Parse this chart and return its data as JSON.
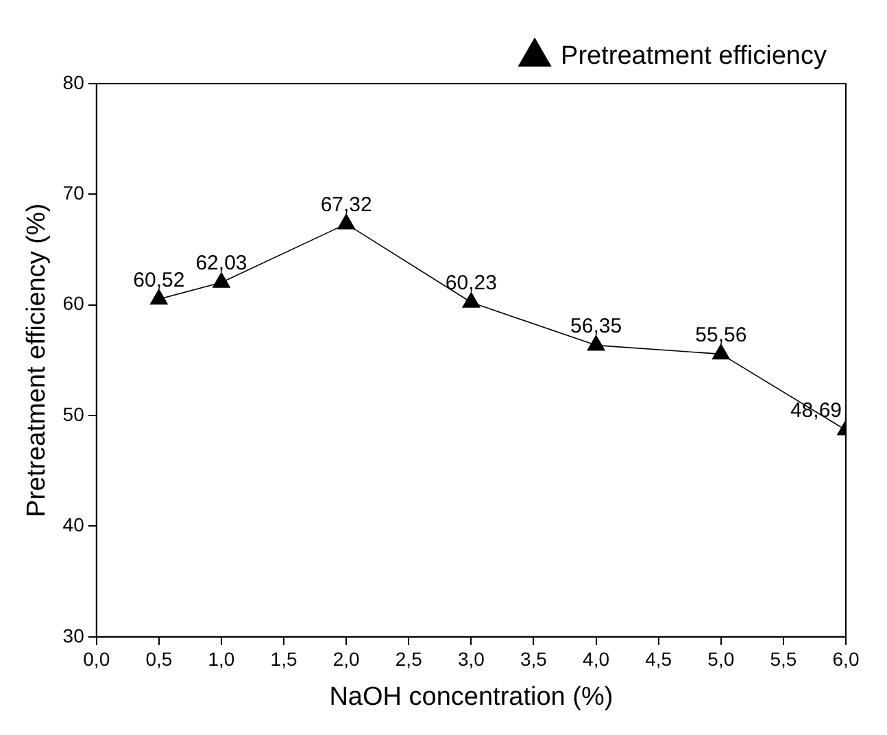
{
  "chart_data": {
    "type": "line",
    "xlabel": "NaOH concentration (%)",
    "ylabel": "Pretreatment efficiency (%)",
    "series": [
      {
        "name": "Pretreatment efficiency",
        "color": "#000000",
        "x": [
          0.5,
          1,
          2,
          3,
          4,
          5,
          6
        ],
        "values": [
          60.52,
          62.03,
          67.32,
          60.23,
          56.35,
          55.56,
          48.69
        ],
        "value_labels": [
          "60,52",
          "62,03",
          "67,32",
          "60,23",
          "56,35",
          "55,56",
          "48,69"
        ]
      }
    ],
    "xlim": [
      0,
      6
    ],
    "xticks": [
      {
        "value": 0,
        "label": "0,0"
      },
      {
        "value": 0.5,
        "label": "0,5"
      },
      {
        "value": 1,
        "label": "1,0"
      },
      {
        "value": 1.5,
        "label": "1,5"
      },
      {
        "value": 2,
        "label": "2,0"
      },
      {
        "value": 2.5,
        "label": "2,5"
      },
      {
        "value": 3,
        "label": "3,0"
      },
      {
        "value": 3.5,
        "label": "3,5"
      },
      {
        "value": 4,
        "label": "4,0"
      },
      {
        "value": 4.5,
        "label": "4,5"
      },
      {
        "value": 5,
        "label": "5,0"
      },
      {
        "value": 5.5,
        "label": "5,5"
      },
      {
        "value": 6,
        "label": "6,0"
      }
    ],
    "ylim": [
      30,
      80
    ],
    "yticks": [
      30,
      40,
      50,
      60,
      70,
      80
    ],
    "legend": "top right",
    "marker": "triangle",
    "line_style": "solid"
  }
}
